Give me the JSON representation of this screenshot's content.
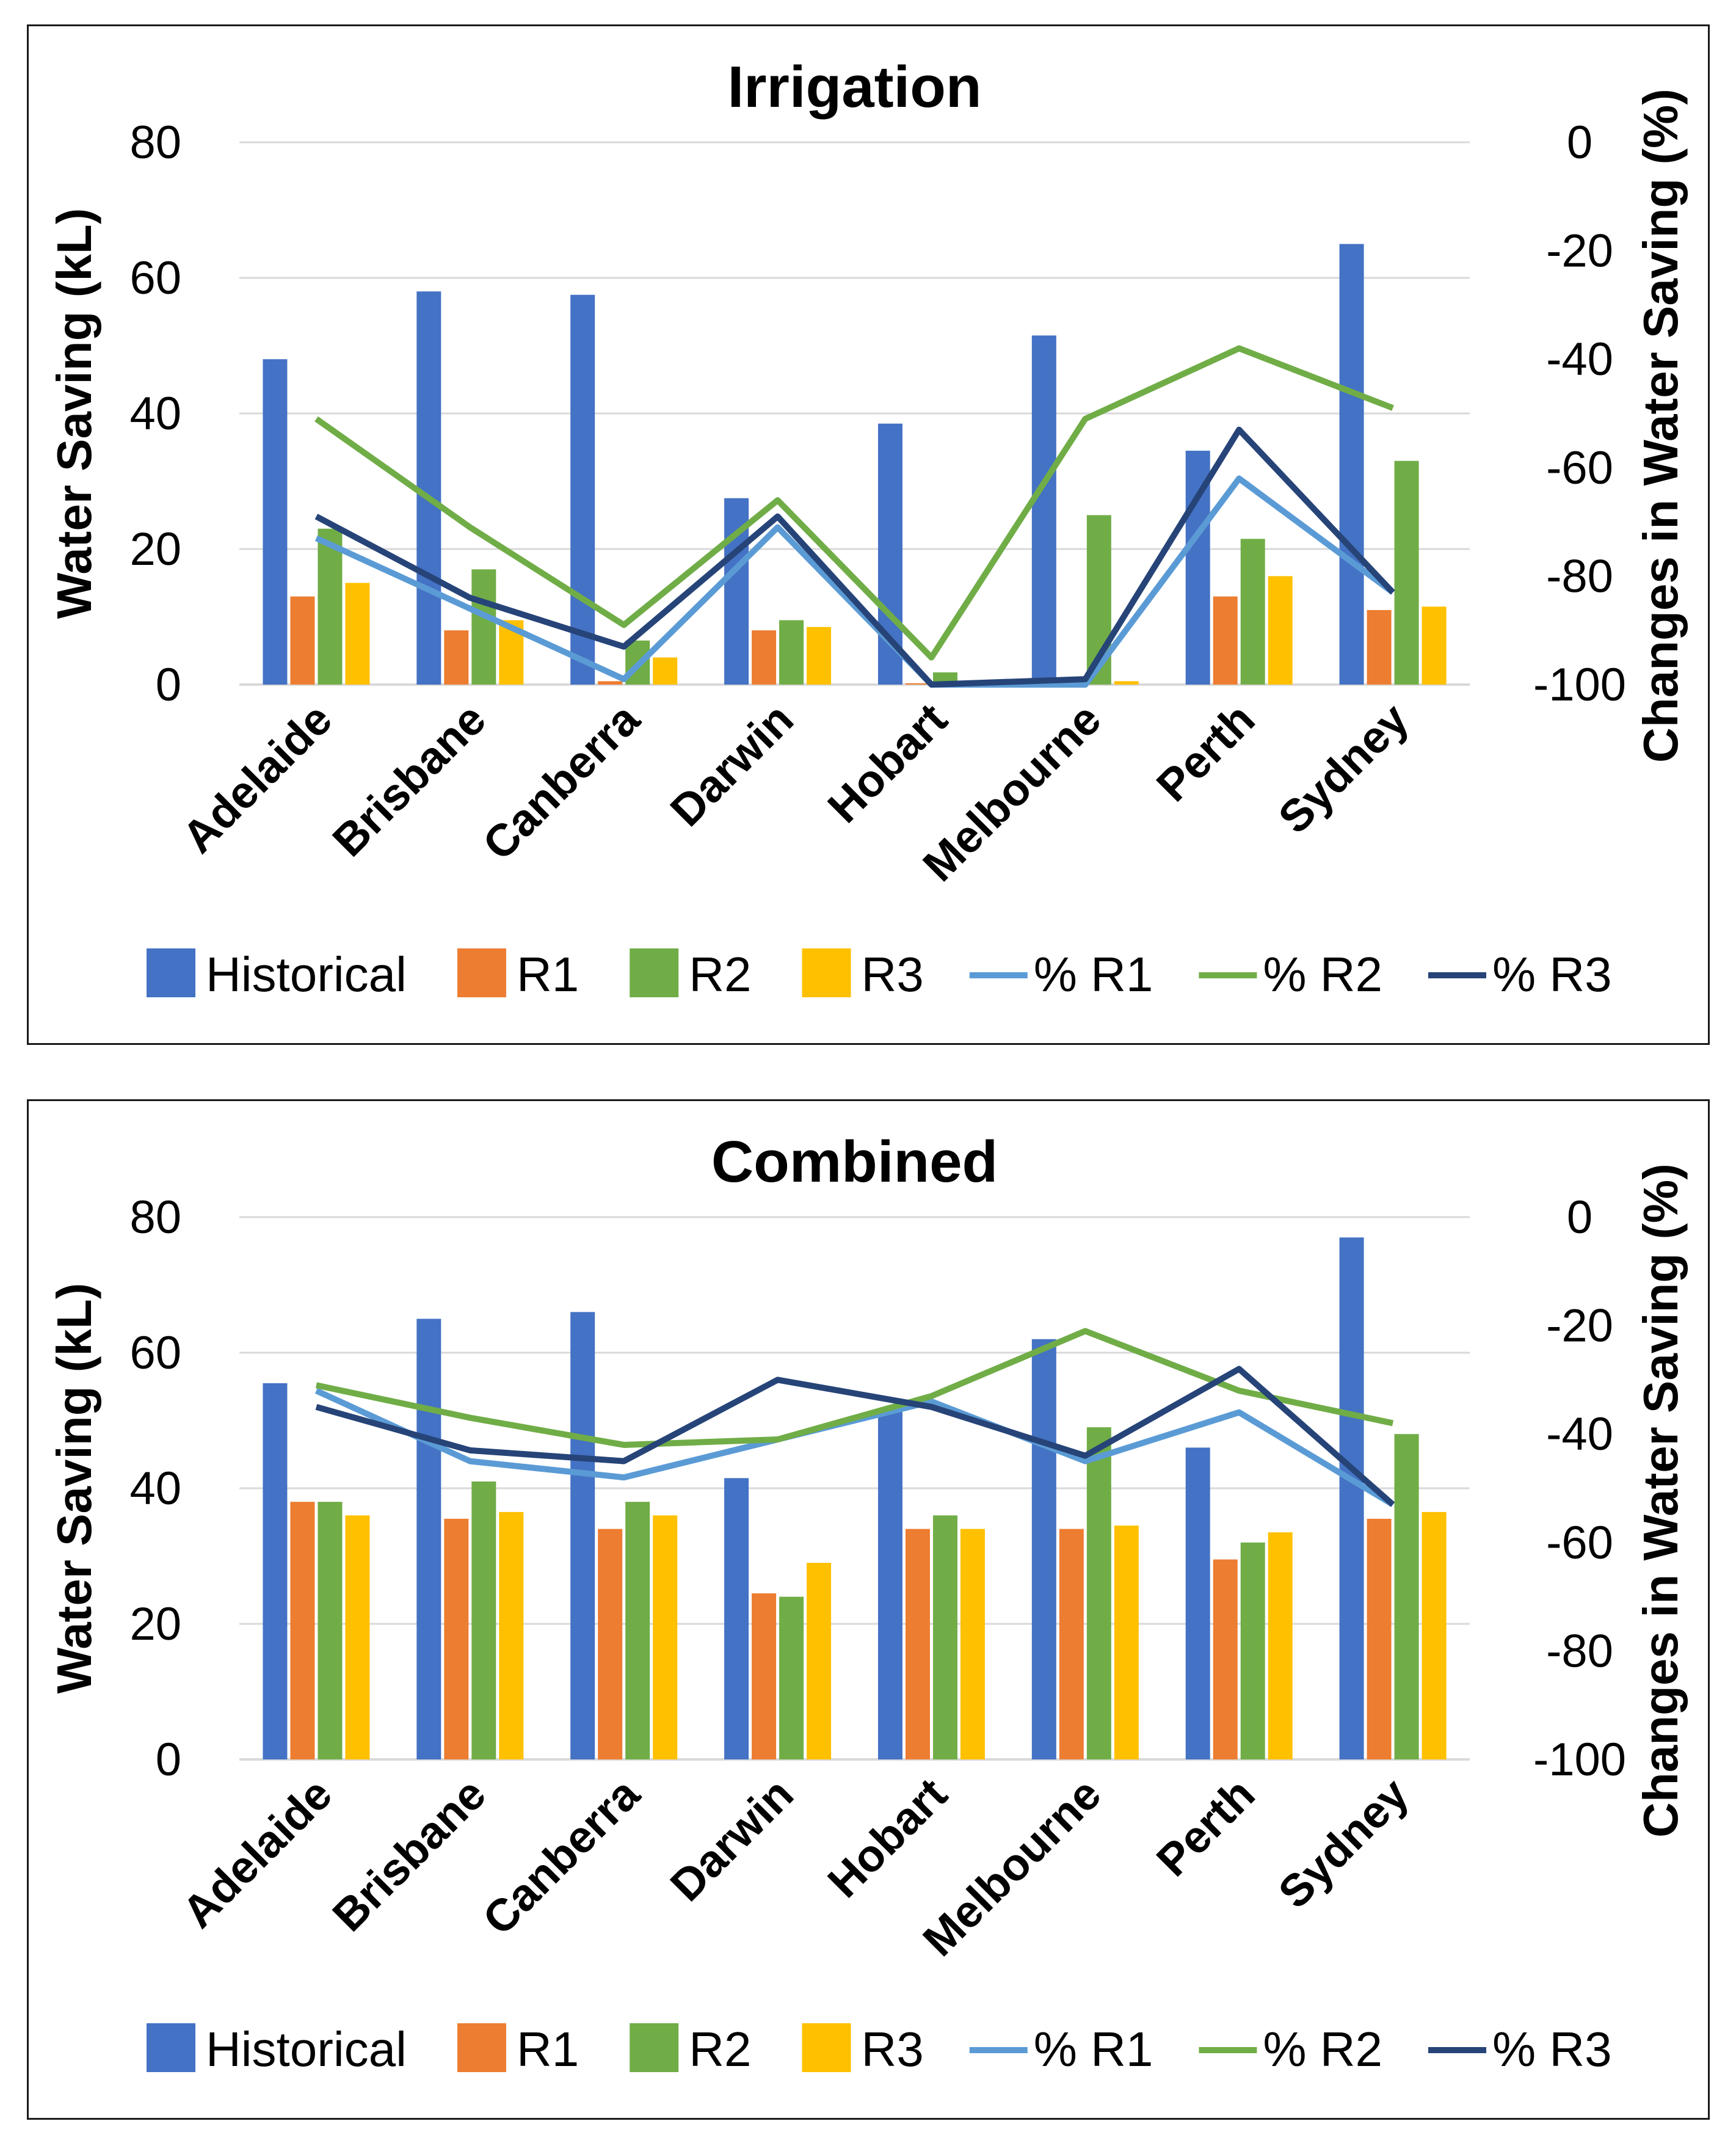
{
  "colors": {
    "Historical": "#4472C4",
    "R1": "#ED7D31",
    "R2": "#70AD47",
    "R3": "#FFC000",
    "% R1": "#5B9BD5",
    "% R2": "#70AD47",
    "% R3": "#264478",
    "grid": "#d9d9d9"
  },
  "chart_data": [
    {
      "type": "bar",
      "title": "Irrigation",
      "categories": [
        "Adelaide",
        "Brisbane",
        "Canberra",
        "Darwin",
        "Hobart",
        "Melbourne",
        "Perth",
        "Sydney"
      ],
      "ylabel": "Water Saving (kL)",
      "ylim": [
        0,
        80
      ],
      "yticks": [
        "0",
        "20",
        "40",
        "60",
        "80"
      ],
      "y2label": "Changes in Water Saving (%)",
      "y2lim": [
        -100,
        0
      ],
      "y2ticks": [
        "-100",
        "-80",
        "-60",
        "-40",
        "-20",
        "0"
      ],
      "bar_series": [
        {
          "name": "Historical",
          "values": [
            48,
            58,
            57.5,
            27.5,
            38.5,
            51.5,
            34.5,
            65
          ]
        },
        {
          "name": "R1",
          "values": [
            13,
            8,
            0.5,
            8,
            0.2,
            0.3,
            13,
            11
          ]
        },
        {
          "name": "R2",
          "values": [
            23,
            17,
            6.5,
            9.5,
            1.8,
            25,
            21.5,
            33
          ]
        },
        {
          "name": "R3",
          "values": [
            15,
            9.5,
            4,
            8.5,
            0.2,
            0.5,
            16,
            11.5
          ]
        }
      ],
      "line_series": [
        {
          "name": "% R1",
          "values": [
            -73,
            -86,
            -99,
            -71,
            -100,
            -100,
            -62,
            -83
          ]
        },
        {
          "name": "% R2",
          "values": [
            -51,
            -71,
            -89,
            -66,
            -95,
            -51,
            -38,
            -49
          ]
        },
        {
          "name": "% R3",
          "values": [
            -69,
            -84,
            -93,
            -69,
            -100,
            -99,
            -53,
            -83
          ]
        }
      ],
      "legend": [
        "Historical",
        "R1",
        "R2",
        "R3",
        "% R1",
        "% R2",
        "% R3"
      ],
      "legend_position": "bottom",
      "grid": true
    },
    {
      "type": "bar",
      "title": "Combined",
      "categories": [
        "Adelaide",
        "Brisbane",
        "Canberra",
        "Darwin",
        "Hobart",
        "Melbourne",
        "Perth",
        "Sydney"
      ],
      "ylabel": "Water Saving (kL)",
      "ylim": [
        0,
        80
      ],
      "yticks": [
        "0",
        "20",
        "40",
        "60",
        "80"
      ],
      "y2label": "Changes in Water Saving (%)",
      "y2lim": [
        -100,
        0
      ],
      "y2ticks": [
        "-100",
        "-80",
        "-60",
        "-40",
        "-20",
        "0"
      ],
      "bar_series": [
        {
          "name": "Historical",
          "values": [
            55.5,
            65,
            66,
            41.5,
            51.5,
            62,
            46,
            77
          ]
        },
        {
          "name": "R1",
          "values": [
            38,
            35.5,
            34,
            24.5,
            34,
            34,
            29.5,
            35.5
          ]
        },
        {
          "name": "R2",
          "values": [
            38,
            41,
            38,
            24,
            36,
            49,
            32,
            48
          ]
        },
        {
          "name": "R3",
          "values": [
            36,
            36.5,
            36,
            29,
            34,
            34.5,
            33.5,
            36.5
          ]
        }
      ],
      "line_series": [
        {
          "name": "% R1",
          "values": [
            -32,
            -45,
            -48,
            -41,
            -34,
            -45,
            -36,
            -53
          ]
        },
        {
          "name": "% R2",
          "values": [
            -31,
            -37,
            -42,
            -41,
            -33,
            -21,
            -32,
            -38
          ]
        },
        {
          "name": "% R3",
          "values": [
            -35,
            -43,
            -45,
            -30,
            -35,
            -44,
            -28,
            -53
          ]
        }
      ],
      "legend": [
        "Historical",
        "R1",
        "R2",
        "R3",
        "% R1",
        "% R2",
        "% R3"
      ],
      "legend_position": "bottom",
      "grid": true
    }
  ]
}
